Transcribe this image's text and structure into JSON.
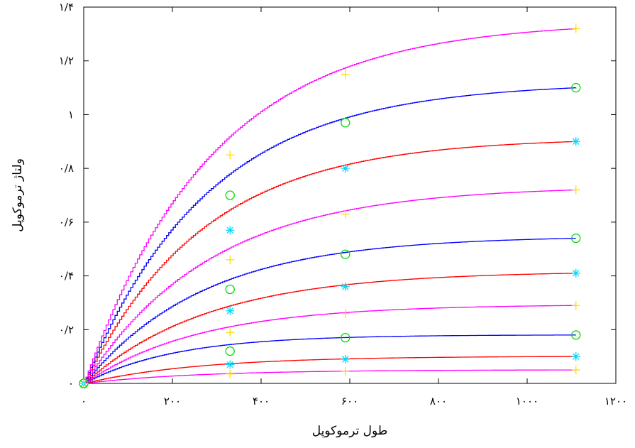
{
  "chart_data": {
    "type": "line",
    "xlabel": "طول ترموکوپل",
    "ylabel": "ولتاژ ترموکوپل",
    "xlim": [
      0,
      1200
    ],
    "ylim": [
      0,
      1.4
    ],
    "grid": false,
    "x_ticks": [
      0,
      200,
      400,
      600,
      800,
      1000,
      1200
    ],
    "x_tick_labels": [
      "۰",
      "۲۰۰",
      "۴۰۰",
      "۶۰۰",
      "۸۰۰",
      "۱۰۰۰",
      "۱۲۰۰"
    ],
    "y_ticks": [
      0,
      0.2,
      0.4,
      0.6,
      0.8,
      1.0,
      1.2,
      1.4
    ],
    "y_tick_labels": [
      "۰",
      "۰/۲",
      "۰/۴",
      "۰/۶",
      "۰/۸",
      "۱",
      "۱/۲",
      "۱/۴"
    ],
    "marker_x": [
      0,
      330,
      590,
      1110
    ],
    "series": [
      {
        "color": "#ff00ff",
        "marker": "plus",
        "values": [
          0,
          0.035,
          0.045,
          0.05
        ]
      },
      {
        "color": "#ff0000",
        "marker": "star",
        "values": [
          0,
          0.07,
          0.09,
          0.1
        ]
      },
      {
        "color": "#0000ff",
        "marker": "circle",
        "values": [
          0,
          0.12,
          0.17,
          0.18
        ]
      },
      {
        "color": "#ff00ff",
        "marker": "plus",
        "values": [
          0,
          0.19,
          0.26,
          0.29
        ]
      },
      {
        "color": "#ff0000",
        "marker": "star",
        "values": [
          0,
          0.27,
          0.36,
          0.41
        ]
      },
      {
        "color": "#0000ff",
        "marker": "circle",
        "values": [
          0,
          0.35,
          0.48,
          0.54
        ]
      },
      {
        "color": "#ff00ff",
        "marker": "plus",
        "values": [
          0,
          0.46,
          0.63,
          0.72
        ]
      },
      {
        "color": "#ff0000",
        "marker": "star",
        "values": [
          0,
          0.57,
          0.8,
          0.9
        ]
      },
      {
        "color": "#0000ff",
        "marker": "circle",
        "values": [
          0,
          0.7,
          0.97,
          1.1
        ]
      },
      {
        "color": "#ff00ff",
        "marker": "plus",
        "values": [
          0,
          0.85,
          1.15,
          1.32
        ]
      }
    ],
    "marker_colors": {
      "plus": "#ffdd00",
      "star": "#00d8ff",
      "circle": "#00dd00"
    }
  }
}
